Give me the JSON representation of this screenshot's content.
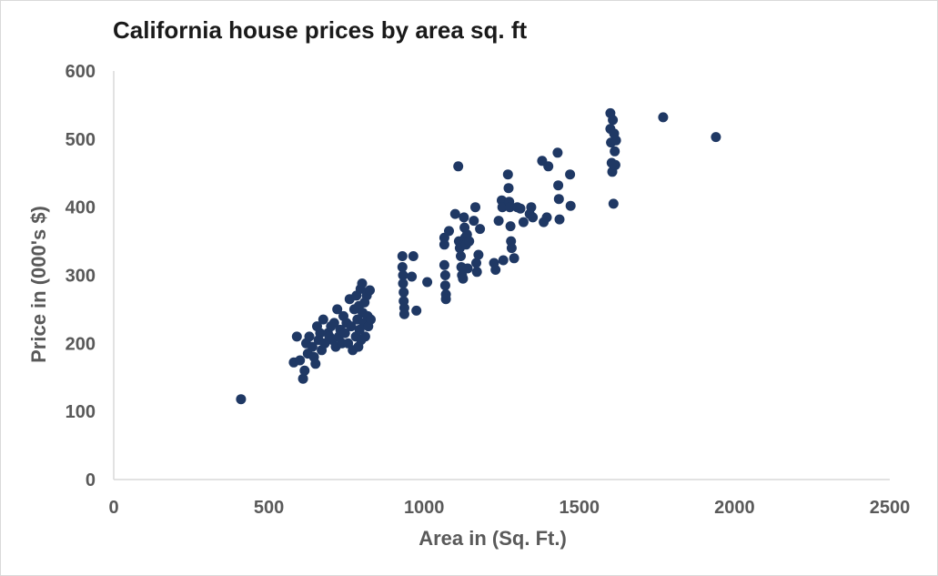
{
  "colors": {
    "marker": "#1f3864",
    "axis": "#d9d9d9",
    "tick_text": "#595959",
    "title_text": "#1a1a1a"
  },
  "chart_data": {
    "type": "scatter",
    "title": "California house prices by area sq. ft",
    "xlabel": "Area in (Sq. Ft.)",
    "ylabel": "Price in (000's $)",
    "xlim": [
      0,
      2500
    ],
    "ylim": [
      0,
      600
    ],
    "xticks": [
      "0",
      "500",
      "1000",
      "1500",
      "2000",
      "2500"
    ],
    "yticks": [
      "0",
      "100",
      "200",
      "300",
      "400",
      "500",
      "600"
    ],
    "grid": false,
    "legend": "none",
    "series": [
      {
        "points": [
          [
            410,
            118
          ],
          [
            580,
            172
          ],
          [
            590,
            210
          ],
          [
            600,
            175
          ],
          [
            610,
            148
          ],
          [
            615,
            160
          ],
          [
            620,
            200
          ],
          [
            625,
            185
          ],
          [
            630,
            210
          ],
          [
            640,
            195
          ],
          [
            645,
            180
          ],
          [
            650,
            170
          ],
          [
            655,
            225
          ],
          [
            660,
            205
          ],
          [
            665,
            215
          ],
          [
            670,
            190
          ],
          [
            675,
            235
          ],
          [
            680,
            200
          ],
          [
            690,
            215
          ],
          [
            695,
            210
          ],
          [
            700,
            225
          ],
          [
            705,
            205
          ],
          [
            710,
            230
          ],
          [
            715,
            195
          ],
          [
            720,
            250
          ],
          [
            725,
            210
          ],
          [
            730,
            220
          ],
          [
            735,
            200
          ],
          [
            740,
            240
          ],
          [
            745,
            215
          ],
          [
            750,
            230
          ],
          [
            755,
            200
          ],
          [
            760,
            265
          ],
          [
            765,
            225
          ],
          [
            770,
            190
          ],
          [
            775,
            250
          ],
          [
            780,
            210
          ],
          [
            782,
            270
          ],
          [
            785,
            235
          ],
          [
            788,
            195
          ],
          [
            790,
            255
          ],
          [
            792,
            220
          ],
          [
            795,
            280
          ],
          [
            797,
            205
          ],
          [
            800,
            288
          ],
          [
            802,
            245
          ],
          [
            805,
            230
          ],
          [
            808,
            260
          ],
          [
            810,
            210
          ],
          [
            815,
            270
          ],
          [
            818,
            240
          ],
          [
            820,
            225
          ],
          [
            825,
            278
          ],
          [
            828,
            235
          ],
          [
            930,
            328
          ],
          [
            930,
            312
          ],
          [
            932,
            300
          ],
          [
            932,
            288
          ],
          [
            934,
            275
          ],
          [
            934,
            262
          ],
          [
            936,
            252
          ],
          [
            936,
            243
          ],
          [
            960,
            298
          ],
          [
            965,
            328
          ],
          [
            975,
            248
          ],
          [
            1010,
            290
          ],
          [
            1065,
            355
          ],
          [
            1065,
            345
          ],
          [
            1065,
            315
          ],
          [
            1068,
            300
          ],
          [
            1068,
            285
          ],
          [
            1070,
            272
          ],
          [
            1070,
            265
          ],
          [
            1080,
            365
          ],
          [
            1100,
            390
          ],
          [
            1110,
            460
          ],
          [
            1112,
            350
          ],
          [
            1115,
            340
          ],
          [
            1118,
            328
          ],
          [
            1120,
            312
          ],
          [
            1122,
            300
          ],
          [
            1125,
            295
          ],
          [
            1128,
            385
          ],
          [
            1130,
            370
          ],
          [
            1132,
            355
          ],
          [
            1135,
            345
          ],
          [
            1138,
            360
          ],
          [
            1140,
            310
          ],
          [
            1145,
            350
          ],
          [
            1160,
            380
          ],
          [
            1165,
            400
          ],
          [
            1168,
            318
          ],
          [
            1170,
            305
          ],
          [
            1175,
            330
          ],
          [
            1180,
            368
          ],
          [
            1225,
            318
          ],
          [
            1230,
            308
          ],
          [
            1240,
            380
          ],
          [
            1250,
            410
          ],
          [
            1252,
            400
          ],
          [
            1255,
            322
          ],
          [
            1270,
            448
          ],
          [
            1272,
            428
          ],
          [
            1274,
            408
          ],
          [
            1276,
            400
          ],
          [
            1278,
            372
          ],
          [
            1280,
            350
          ],
          [
            1282,
            340
          ],
          [
            1290,
            325
          ],
          [
            1300,
            400
          ],
          [
            1310,
            398
          ],
          [
            1320,
            378
          ],
          [
            1340,
            390
          ],
          [
            1345,
            400
          ],
          [
            1350,
            385
          ],
          [
            1380,
            468
          ],
          [
            1385,
            378
          ],
          [
            1395,
            385
          ],
          [
            1400,
            460
          ],
          [
            1430,
            480
          ],
          [
            1432,
            432
          ],
          [
            1434,
            412
          ],
          [
            1436,
            382
          ],
          [
            1470,
            448
          ],
          [
            1472,
            402
          ],
          [
            1600,
            538
          ],
          [
            1600,
            515
          ],
          [
            1602,
            495
          ],
          [
            1604,
            465
          ],
          [
            1606,
            452
          ],
          [
            1608,
            528
          ],
          [
            1610,
            405
          ],
          [
            1612,
            508
          ],
          [
            1614,
            482
          ],
          [
            1616,
            462
          ],
          [
            1618,
            498
          ],
          [
            1770,
            532
          ],
          [
            1940,
            503
          ]
        ]
      }
    ]
  }
}
